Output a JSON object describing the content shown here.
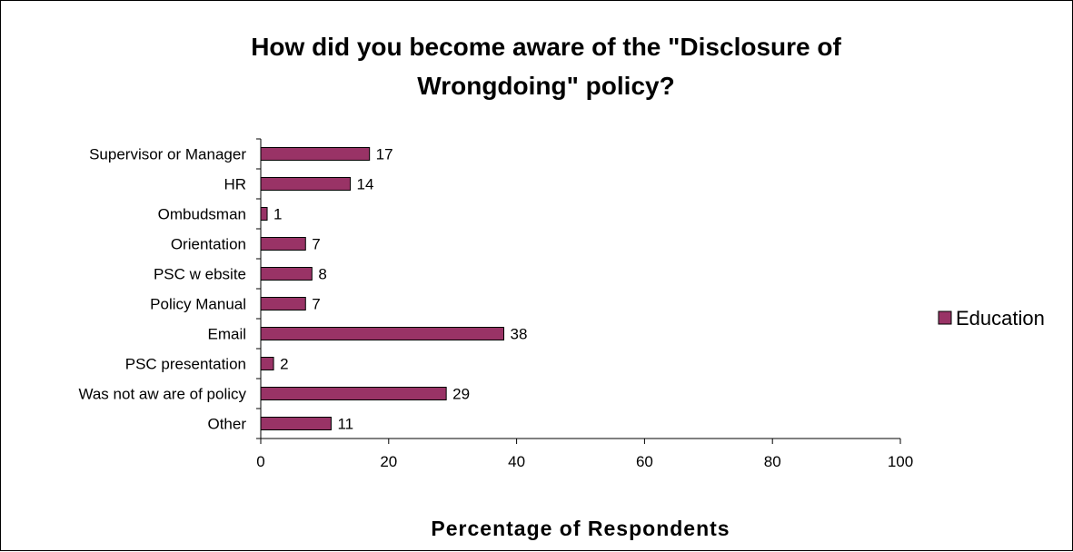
{
  "chart_data": {
    "type": "bar",
    "orientation": "horizontal",
    "title_lines": [
      "How did you become aware of the \"Disclosure of",
      "Wrongdoing\" policy?"
    ],
    "xlabel": "Percentage of Respondents",
    "ylabel": "",
    "categories": [
      "Supervisor or Manager",
      "HR",
      "Ombudsman",
      "Orientation",
      "PSC w ebsite",
      "Policy Manual",
      "Email",
      "PSC presentation",
      "Was not aw are of policy",
      "Other"
    ],
    "series": [
      {
        "name": "Education",
        "color": "#993366",
        "values": [
          17,
          14,
          1,
          7,
          8,
          7,
          38,
          2,
          29,
          11
        ]
      }
    ],
    "xlim": [
      0,
      100
    ],
    "xticks": [
      0,
      20,
      40,
      60,
      80,
      100
    ],
    "grid": false,
    "legend_position": "right"
  }
}
